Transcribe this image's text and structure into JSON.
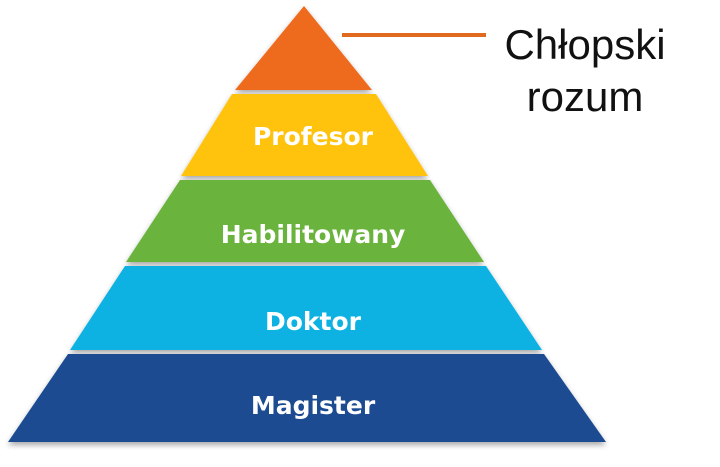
{
  "pyramid": {
    "tiers": [
      {
        "label": "",
        "color": "#EE6A1C",
        "shadow": "#C24F0F"
      },
      {
        "label": "Profesor",
        "color": "#FFC20E",
        "shadow": "#D69C00"
      },
      {
        "label": "Habilitowany",
        "color": "#6BB33E",
        "shadow": "#4C8A2A"
      },
      {
        "label": "Doktor",
        "color": "#0DB2E2",
        "shadow": "#0A8AB2"
      },
      {
        "label": "Magister",
        "color": "#1C4C92",
        "shadow": "#133566"
      }
    ],
    "label_color": "#FFFFFF"
  },
  "callout": {
    "lines": [
      "Chłopski",
      "rozum"
    ],
    "line_color": "#E06A1E",
    "text_color": "#111111"
  }
}
